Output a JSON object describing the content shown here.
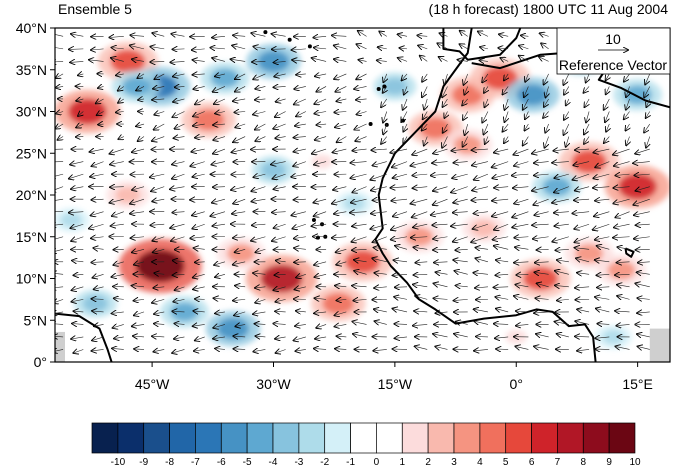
{
  "title_left": "Ensemble 5",
  "title_right": "(18 h forecast) 1800 UTC 11 Aug 2004",
  "y_ticks": [
    {
      "label": "40°N",
      "value": 40
    },
    {
      "label": "35°N",
      "value": 35
    },
    {
      "label": "30°N",
      "value": 30
    },
    {
      "label": "25°N",
      "value": 25
    },
    {
      "label": "20°N",
      "value": 20
    },
    {
      "label": "15°N",
      "value": 15
    },
    {
      "label": "10°N",
      "value": 10
    },
    {
      "label": "5°N",
      "value": 5
    },
    {
      "label": "0°",
      "value": 0
    }
  ],
  "x_ticks": [
    {
      "label": "45°W",
      "value": -45
    },
    {
      "label": "30°W",
      "value": -30
    },
    {
      "label": "15°W",
      "value": -15
    },
    {
      "label": "0°",
      "value": 0
    },
    {
      "label": "15°E",
      "value": 15
    }
  ],
  "map_extent": {
    "lon_min": -57,
    "lon_max": 19,
    "lat_min": 0,
    "lat_max": 40
  },
  "reference_vector": {
    "magnitude": "10",
    "label": "Reference Vector"
  },
  "colorbar": {
    "labels": [
      "-10",
      "-9",
      "-8",
      "-7",
      "-6",
      "-5",
      "-4",
      "-3",
      "-2",
      "-1",
      "0",
      "1",
      "2",
      "3",
      "4",
      "5",
      "6",
      "7",
      "8",
      "9",
      "10"
    ],
    "colors": [
      "#08214f",
      "#0b2f6b",
      "#1a4f8c",
      "#2166a8",
      "#2b76b6",
      "#4692c4",
      "#5ea8d1",
      "#87c3de",
      "#aedcea",
      "#d4f0f8",
      "#ffffff",
      "#ffffff",
      "#fcdcdc",
      "#f9b9ae",
      "#f59481",
      "#f0705d",
      "#e6483b",
      "#cf232a",
      "#b11726",
      "#8d0c1d",
      "#6b0613"
    ]
  },
  "anomalies": [
    {
      "lon": -53,
      "lat": 30,
      "value": 7
    },
    {
      "lon": -48,
      "lat": 36,
      "value": 6
    },
    {
      "lon": -44,
      "lat": 11.5,
      "value": 10
    },
    {
      "lon": -29,
      "lat": 10,
      "value": 8
    },
    {
      "lon": -34,
      "lat": 13,
      "value": 4
    },
    {
      "lon": -38,
      "lat": 29,
      "value": 5
    },
    {
      "lon": -36,
      "lat": 34,
      "value": -4
    },
    {
      "lon": -30,
      "lat": 36,
      "value": -5
    },
    {
      "lon": -44,
      "lat": 33,
      "value": -6
    },
    {
      "lon": -47,
      "lat": 33,
      "value": -4
    },
    {
      "lon": -35,
      "lat": 4,
      "value": -5
    },
    {
      "lon": -41,
      "lat": 6,
      "value": -4
    },
    {
      "lon": -52,
      "lat": 7,
      "value": -3
    },
    {
      "lon": -30,
      "lat": 23,
      "value": -3
    },
    {
      "lon": -55,
      "lat": 17,
      "value": -2
    },
    {
      "lon": -19,
      "lat": 12,
      "value": 6
    },
    {
      "lon": -22,
      "lat": 7,
      "value": 5
    },
    {
      "lon": -12,
      "lat": 15,
      "value": 4
    },
    {
      "lon": -10,
      "lat": 28,
      "value": 5
    },
    {
      "lon": -6,
      "lat": 32,
      "value": 5
    },
    {
      "lon": -2,
      "lat": 34,
      "value": 6
    },
    {
      "lon": -6,
      "lat": 26,
      "value": 4
    },
    {
      "lon": -4,
      "lat": 16,
      "value": 3
    },
    {
      "lon": 3,
      "lat": 10,
      "value": 6
    },
    {
      "lon": 9,
      "lat": 24,
      "value": 6
    },
    {
      "lon": 15,
      "lat": 21,
      "value": 7
    },
    {
      "lon": 13,
      "lat": 11,
      "value": 4
    },
    {
      "lon": 9,
      "lat": 13,
      "value": 4
    },
    {
      "lon": 5,
      "lat": 21,
      "value": -4
    },
    {
      "lon": 2,
      "lat": 32,
      "value": -5
    },
    {
      "lon": 15,
      "lat": 32,
      "value": -4
    },
    {
      "lon": 8,
      "lat": 36,
      "value": -3
    },
    {
      "lon": -15,
      "lat": 33,
      "value": -3
    },
    {
      "lon": -24,
      "lat": 24,
      "value": 2
    },
    {
      "lon": -48,
      "lat": 20,
      "value": 3
    },
    {
      "lon": -20,
      "lat": 19,
      "value": -2
    },
    {
      "lon": 0,
      "lat": 3,
      "value": 2
    },
    {
      "lon": 12,
      "lat": 3,
      "value": -2
    }
  ],
  "winds": [
    {
      "lat_max": 40,
      "lat_min": 36,
      "lon_min": -57,
      "lon_max": -20,
      "u": -6,
      "v": 0.5
    },
    {
      "lat_max": 40,
      "lat_min": 36,
      "lon_min": -20,
      "lon_max": 19,
      "u": -4,
      "v": 1.5
    },
    {
      "lat_max": 36,
      "lat_min": 26,
      "lon_min": -57,
      "lon_max": -45,
      "u": -3,
      "v": -1
    },
    {
      "lat_max": 36,
      "lat_min": 26,
      "lon_min": -45,
      "lon_max": -18,
      "u": -5,
      "v": -1.5
    },
    {
      "lat_max": 36,
      "lat_min": 26,
      "lon_min": -18,
      "lon_max": 19,
      "u": -2,
      "v": -4
    },
    {
      "lat_max": 26,
      "lat_min": 14,
      "lon_min": -57,
      "lon_max": -20,
      "u": -6,
      "v": -1
    },
    {
      "lat_max": 26,
      "lat_min": 14,
      "lon_min": -20,
      "lon_max": 19,
      "u": -7,
      "v": -1.5
    },
    {
      "lat_max": 14,
      "lat_min": 0,
      "lon_min": -57,
      "lon_max": -20,
      "u": -5,
      "v": -0.5
    },
    {
      "lat_max": 14,
      "lat_min": 0,
      "lon_min": -20,
      "lon_max": 19,
      "u": -6,
      "v": 0.5
    }
  ],
  "coastlines": [
    {
      "name": "west-africa",
      "points": [
        [
          -5.5,
          40
        ],
        [
          -6,
          37
        ],
        [
          -9,
          33
        ],
        [
          -10,
          30
        ],
        [
          -13,
          27
        ],
        [
          -15,
          25
        ],
        [
          -16.5,
          22
        ],
        [
          -17,
          20
        ],
        [
          -16.5,
          16
        ],
        [
          -17.4,
          14.7
        ],
        [
          -16.5,
          13
        ],
        [
          -15.5,
          11.5
        ],
        [
          -13.5,
          9.5
        ],
        [
          -12,
          7.5
        ],
        [
          -10,
          6.3
        ],
        [
          -7.5,
          4.6
        ],
        [
          -4,
          5.2
        ],
        [
          0,
          5.6
        ],
        [
          2.5,
          6.3
        ],
        [
          4.5,
          6
        ],
        [
          6.5,
          4.3
        ],
        [
          8.5,
          4.5
        ],
        [
          9.5,
          3
        ],
        [
          9.8,
          0
        ]
      ]
    },
    {
      "name": "south-america",
      "points": [
        [
          -57,
          5.8
        ],
        [
          -54,
          5.5
        ],
        [
          -51.5,
          4
        ],
        [
          -50.5,
          1.5
        ],
        [
          -50,
          0
        ]
      ]
    },
    {
      "name": "north-africa",
      "points": [
        [
          -5.5,
          35.8
        ],
        [
          -2,
          35.2
        ],
        [
          3,
          36.8
        ],
        [
          10,
          37.3
        ],
        [
          11,
          35
        ],
        [
          10.2,
          33.8
        ],
        [
          13,
          32.8
        ],
        [
          16,
          31.3
        ],
        [
          19,
          30.5
        ]
      ]
    },
    {
      "name": "iberia",
      "points": [
        [
          -9,
          40
        ],
        [
          -9,
          37.5
        ],
        [
          -7,
          37.2
        ],
        [
          -6,
          36.2
        ],
        [
          -2,
          36.8
        ],
        [
          0,
          38.8
        ],
        [
          0.5,
          40
        ]
      ]
    },
    {
      "name": "italy",
      "points": [
        [
          15.5,
          40
        ],
        [
          16.5,
          38.5
        ],
        [
          15.7,
          38
        ],
        [
          16,
          39.5
        ],
        [
          17.5,
          40
        ]
      ]
    },
    {
      "name": "sicily",
      "points": [
        [
          12.5,
          38.1
        ],
        [
          15.5,
          38.2
        ],
        [
          15,
          36.7
        ],
        [
          12.5,
          37.6
        ],
        [
          12.5,
          38.1
        ]
      ]
    },
    {
      "name": "lake-chad",
      "points": [
        [
          13.5,
          13.6
        ],
        [
          14.5,
          13.2
        ],
        [
          14.2,
          12.6
        ],
        [
          13.6,
          13.0
        ],
        [
          13.5,
          13.6
        ]
      ]
    }
  ],
  "islands": [
    {
      "name": "canary-islands",
      "points": [
        [
          -18,
          28.5
        ],
        [
          -16,
          28.4
        ],
        [
          -14,
          28.9
        ]
      ]
    },
    {
      "name": "cape-verde",
      "points": [
        [
          -25,
          17
        ],
        [
          -24,
          16.5
        ],
        [
          -23.6,
          15
        ],
        [
          -24.5,
          14.9
        ]
      ]
    },
    {
      "name": "azores",
      "points": [
        [
          -31,
          39.5
        ],
        [
          -28,
          38.6
        ],
        [
          -25.5,
          37.8
        ]
      ]
    },
    {
      "name": "madeira",
      "points": [
        [
          -17,
          32.7
        ],
        [
          -16.3,
          33
        ]
      ]
    }
  ]
}
